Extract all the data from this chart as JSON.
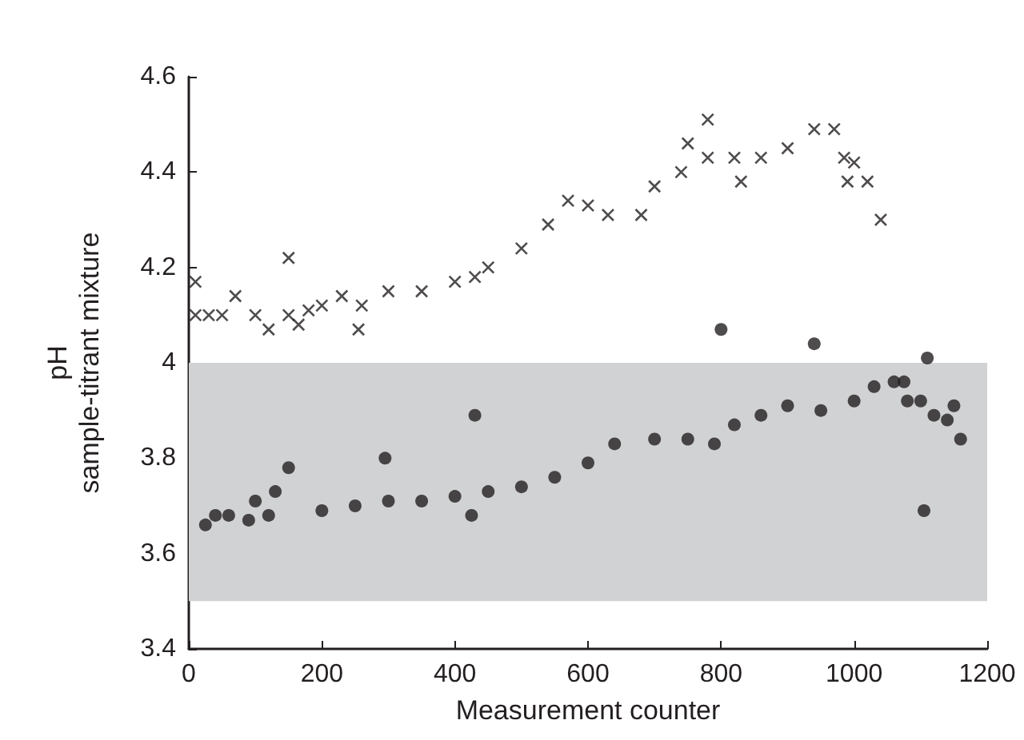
{
  "chart_data": {
    "type": "scatter",
    "xlabel": "Measurement counter",
    "ylabel": "pH\nsample-titrant mixture",
    "xlim": [
      0,
      1200
    ],
    "xticks": [
      0,
      200,
      400,
      600,
      800,
      1000,
      1200
    ],
    "ylim": [
      3.4,
      4.6
    ],
    "yticks": [
      3.4,
      3.6,
      3.8,
      4,
      4.2,
      4.4,
      4.6
    ],
    "grid": false,
    "bands": [
      {
        "axis": "y",
        "from": 3.5,
        "to": 4.0,
        "color": "#d1d2d4"
      }
    ],
    "series": [
      {
        "color": "#231f20",
        "marker": "cross",
        "x": [
          10,
          10,
          30,
          50,
          70,
          100,
          120,
          150,
          150,
          165,
          180,
          200,
          230,
          255,
          260,
          300,
          350,
          400,
          430,
          450,
          500,
          540,
          570,
          600,
          630,
          680,
          700,
          740,
          750,
          780,
          780,
          820,
          830,
          860,
          900,
          940,
          970,
          985,
          990,
          1000,
          1020,
          1040
        ],
        "values": [
          4.1,
          4.17,
          4.1,
          4.1,
          4.14,
          4.1,
          4.07,
          4.1,
          4.22,
          4.08,
          4.11,
          4.12,
          4.14,
          4.07,
          4.12,
          4.15,
          4.15,
          4.17,
          4.18,
          4.2,
          4.24,
          4.29,
          4.34,
          4.33,
          4.31,
          4.31,
          4.37,
          4.4,
          4.46,
          4.43,
          4.51,
          4.43,
          4.38,
          4.43,
          4.45,
          4.49,
          4.49,
          4.43,
          4.38,
          4.42,
          4.38,
          4.3
        ]
      },
      {
        "color": "#231f20",
        "marker": "circle",
        "x": [
          25,
          40,
          60,
          90,
          100,
          120,
          130,
          150,
          200,
          250,
          295,
          300,
          350,
          400,
          425,
          430,
          450,
          500,
          550,
          600,
          640,
          700,
          750,
          790,
          800,
          820,
          860,
          900,
          940,
          950,
          1000,
          1030,
          1060,
          1075,
          1080,
          1100,
          1105,
          1110,
          1120,
          1140,
          1150,
          1160
        ],
        "values": [
          3.66,
          3.68,
          3.68,
          3.67,
          3.71,
          3.68,
          3.73,
          3.78,
          3.69,
          3.7,
          3.8,
          3.71,
          3.71,
          3.72,
          3.68,
          3.89,
          3.73,
          3.74,
          3.76,
          3.79,
          3.83,
          3.84,
          3.84,
          3.83,
          4.07,
          3.87,
          3.89,
          3.91,
          4.04,
          3.9,
          3.92,
          3.95,
          3.96,
          3.96,
          3.92,
          3.92,
          3.69,
          4.01,
          3.89,
          3.88,
          3.91,
          3.84
        ]
      }
    ]
  }
}
